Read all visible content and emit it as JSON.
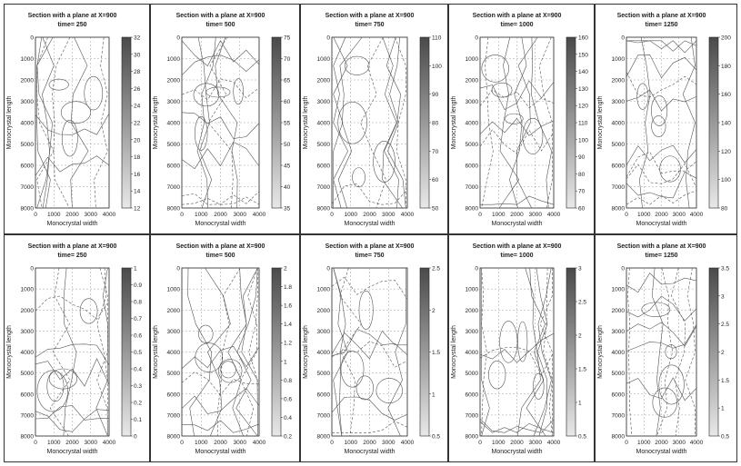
{
  "common": {
    "title": "Section with a plane at X=900",
    "xlabel": "Monocrystal width",
    "ylabel": "Monocrystal length",
    "xticks": [
      "0",
      "1000",
      "2000",
      "3000",
      "4000"
    ],
    "yticks": [
      "0",
      "1000",
      "2000",
      "3000",
      "4000",
      "5000",
      "6000",
      "7000",
      "8000"
    ]
  },
  "chart_data": [
    {
      "type": "contour",
      "row": 0,
      "col": 0,
      "subtitle": "time= 250",
      "title": "Section with a plane at X=900",
      "xlabel": "Monocrystal width",
      "ylabel": "Monocrystal length",
      "xlim": [
        0,
        4000
      ],
      "ylim": [
        8000,
        0
      ],
      "colorbar": {
        "ticks": [
          "32",
          "30",
          "28",
          "26",
          "24",
          "22",
          "20",
          "18",
          "16",
          "14",
          "12"
        ],
        "range": [
          12,
          32
        ]
      },
      "grid": true
    },
    {
      "type": "contour",
      "row": 0,
      "col": 1,
      "subtitle": "time= 500",
      "title": "Section with a plane at X=900",
      "xlabel": "Monocrystal width",
      "ylabel": "Monocrystal length",
      "xlim": [
        0,
        4000
      ],
      "ylim": [
        8000,
        0
      ],
      "colorbar": {
        "ticks": [
          "75",
          "70",
          "65",
          "60",
          "55",
          "50",
          "45",
          "40",
          "35"
        ],
        "range": [
          35,
          75
        ]
      },
      "grid": true
    },
    {
      "type": "contour",
      "row": 0,
      "col": 2,
      "subtitle": "time= 750",
      "title": "Section with a plane at X=900",
      "xlabel": "Monocrystal width",
      "ylabel": "Monocrystal length",
      "xlim": [
        0,
        4000
      ],
      "ylim": [
        8000,
        0
      ],
      "colorbar": {
        "ticks": [
          "110",
          "100",
          "90",
          "80",
          "70",
          "60",
          "50"
        ],
        "range": [
          50,
          110
        ]
      },
      "grid": true
    },
    {
      "type": "contour",
      "row": 0,
      "col": 3,
      "subtitle": "time= 1000",
      "title": "Section with a plane at X=900",
      "xlabel": "Monocrystal width",
      "ylabel": "Monocrystal length",
      "xlim": [
        0,
        4000
      ],
      "ylim": [
        8000,
        0
      ],
      "colorbar": {
        "ticks": [
          "160",
          "150",
          "140",
          "130",
          "120",
          "110",
          "100",
          "90",
          "80",
          "70",
          "60"
        ],
        "range": [
          60,
          160
        ]
      },
      "grid": true
    },
    {
      "type": "contour",
      "row": 0,
      "col": 4,
      "subtitle": "time= 1250",
      "title": "Section with a plane at X=900",
      "xlabel": "Monocrystal width",
      "ylabel": "Monocrystal length",
      "xlim": [
        0,
        4000
      ],
      "ylim": [
        8000,
        0
      ],
      "colorbar": {
        "ticks": [
          "200",
          "180",
          "160",
          "140",
          "120",
          "100",
          "80"
        ],
        "range": [
          80,
          200
        ]
      },
      "grid": true
    },
    {
      "type": "contour",
      "row": 1,
      "col": 0,
      "subtitle": "time= 250",
      "title": "Section with a plane at X=900",
      "xlabel": "Monocrystal width",
      "ylabel": "Monocrystal length",
      "xlim": [
        0,
        4000
      ],
      "ylim": [
        8000,
        0
      ],
      "colorbar": {
        "ticks": [
          "1",
          "0.9",
          "0.8",
          "0.7",
          "0.6",
          "0.5",
          "0.4",
          "0.3",
          "0.2",
          "0.1",
          "0"
        ],
        "range": [
          0,
          1
        ]
      },
      "grid": true
    },
    {
      "type": "contour",
      "row": 1,
      "col": 1,
      "subtitle": "time= 500",
      "title": "Section with a plane at X=900",
      "xlabel": "Monocrystal width",
      "ylabel": "Monocrystal length",
      "xlim": [
        0,
        4000
      ],
      "ylim": [
        8000,
        0
      ],
      "colorbar": {
        "ticks": [
          "2",
          "1.8",
          "1.6",
          "1.4",
          "1.2",
          "1",
          "0.8",
          "0.6",
          "0.4",
          "0.2"
        ],
        "range": [
          0.2,
          2
        ]
      },
      "grid": true
    },
    {
      "type": "contour",
      "row": 1,
      "col": 2,
      "subtitle": "time= 750",
      "title": "Section with a plane at X=900",
      "xlabel": "Monocrystal width",
      "ylabel": "Monocrystal length",
      "xlim": [
        0,
        4000
      ],
      "ylim": [
        8000,
        0
      ],
      "colorbar": {
        "ticks": [
          "2.5",
          "2",
          "1.5",
          "1",
          "0.5"
        ],
        "range": [
          0.5,
          2.5
        ]
      },
      "grid": true
    },
    {
      "type": "contour",
      "row": 1,
      "col": 3,
      "subtitle": "time= 1000",
      "title": "Section with a plane at X=900",
      "xlabel": "Monocrystal width",
      "ylabel": "Monocrystal length",
      "xlim": [
        0,
        4000
      ],
      "ylim": [
        8000,
        0
      ],
      "colorbar": {
        "ticks": [
          "3",
          "2.5",
          "2",
          "1.5",
          "1",
          "0.5"
        ],
        "range": [
          0.5,
          3
        ]
      },
      "grid": true
    },
    {
      "type": "contour",
      "row": 1,
      "col": 4,
      "subtitle": "time= 1250",
      "title": "Section with a plane at X=900",
      "xlabel": "Monocrystal width",
      "ylabel": "Monocrystal length",
      "xlim": [
        0,
        4000
      ],
      "ylim": [
        8000,
        0
      ],
      "colorbar": {
        "ticks": [
          "3.5",
          "3",
          "2.5",
          "2",
          "1.5",
          "1",
          "0.5"
        ],
        "range": [
          0.5,
          3.5
        ]
      },
      "grid": true
    }
  ]
}
